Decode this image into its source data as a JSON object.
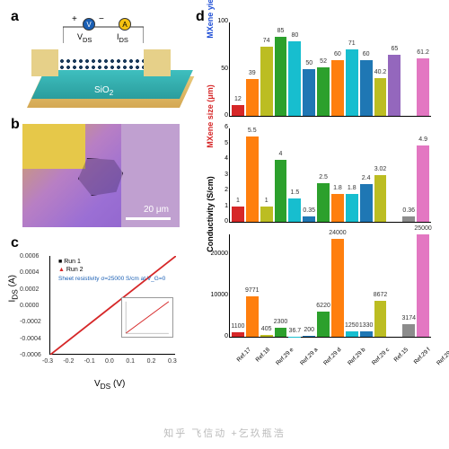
{
  "panels": {
    "a": "a",
    "b": "b",
    "c": "c",
    "d": "d"
  },
  "a": {
    "vds": "V",
    "vds_sub": "DS",
    "ids": "I",
    "ids_sub": "DS",
    "sio2": "SiO",
    "sio2_sub": "2",
    "plus": "+",
    "minus": "−",
    "v_meter": "V",
    "a_meter": "A",
    "meter_colors": {
      "v": "#1a5fb4",
      "a": "#f5c211"
    }
  },
  "b": {
    "scalebar": "20 μm"
  },
  "c": {
    "ylabel": "I_DS (A)",
    "xlabel": "V_DS (V)",
    "legend": [
      "Run 1",
      "Run 2"
    ],
    "note": "Sheet resistivity\nσ=25000 S/cm  at V_G=0",
    "xticks": [
      "-0.3",
      "-0.2",
      "-0.1",
      "0.0",
      "0.1",
      "0.2",
      "0.3"
    ],
    "yticks": [
      "-0.0006",
      "-0.0004",
      "-0.0002",
      "0.0000",
      "0.0002",
      "0.0004",
      "0.0006"
    ],
    "inset_x": "VDS (V)",
    "inset_y": "IDS μA",
    "line_color": "#d62728"
  },
  "d": {
    "categories": [
      "Ref.17",
      "Ref.18",
      "Ref.29 e",
      "Ref.29 a",
      "Ref.29 d",
      "Ref.29 b",
      "Ref.29 c",
      "Ref.15",
      "Ref.29 f",
      "Ref.29 g",
      "Ref.29 h",
      "Ref.29 i",
      "Ref.23 d",
      "This work"
    ],
    "colors": [
      "#d62728",
      "#ff7f0e",
      "#bcbd22",
      "#2ca02c",
      "#17becf",
      "#1f77b4",
      "#2ca02c",
      "#ff7f0e",
      "#17becf",
      "#1f77b4",
      "#bcbd22",
      "#9467bd",
      "#8c8c8c",
      "#e377c2"
    ],
    "yield": {
      "label": "MXene yield (wt%)",
      "label_color": "#1f4fd6",
      "values": [
        12,
        39,
        74,
        85,
        80,
        50,
        52,
        60,
        71,
        60,
        40.2,
        65,
        null,
        61.2
      ],
      "texts": [
        "12",
        "39",
        "74",
        "85",
        "80",
        "50",
        "52",
        "60",
        "71",
        "60",
        "40.2",
        "65",
        "",
        "61.2"
      ],
      "ylim": 100,
      "yticks": [
        0,
        50,
        100
      ]
    },
    "size": {
      "label": "MXene size (μm)",
      "label_color": "#d62728",
      "values": [
        1,
        5.5,
        1,
        4,
        1.5,
        0.35,
        2.5,
        1.8,
        1.8,
        2.4,
        3.02,
        null,
        0.36,
        4.9
      ],
      "texts": [
        "1",
        "5.5",
        "1",
        "4",
        "1.5",
        "0.35",
        "2.5",
        "1.8",
        "1.8",
        "2.4",
        "3.02",
        "",
        "0.36",
        "4.9"
      ],
      "ylim": 6,
      "yticks": [
        0,
        1,
        2,
        3,
        4,
        5,
        6
      ]
    },
    "cond": {
      "label": "Conductivity (S/cm)",
      "label_color": "#000",
      "values": [
        1100,
        9771,
        405,
        2300,
        36.7,
        200,
        6220,
        24000,
        1250,
        1330,
        8672,
        null,
        3174,
        25000
      ],
      "texts": [
        "1100",
        "9771",
        "405",
        "2300",
        "36.7",
        "200",
        "6220",
        "24000",
        "1250",
        "1330",
        "8672",
        "",
        "3174",
        "25000"
      ],
      "ylim": 25000,
      "yticks": [
        0,
        10000,
        20000
      ]
    }
  },
  "watermark": "知乎 飞信动 +乞玖瓶浩"
}
